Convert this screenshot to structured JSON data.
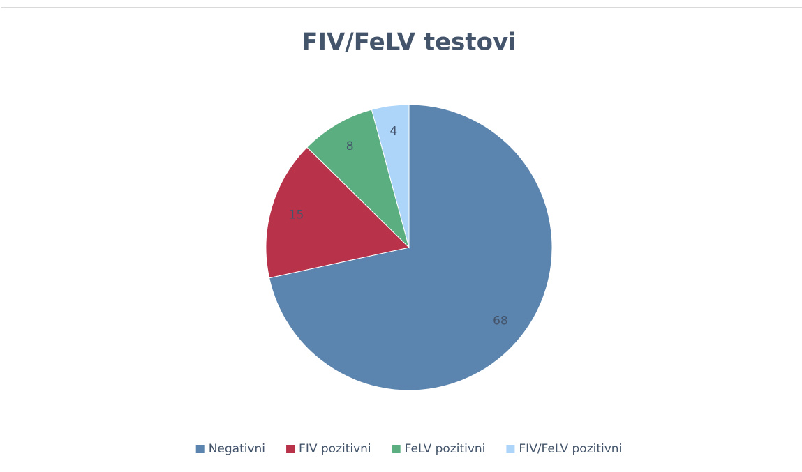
{
  "chart_data": {
    "type": "pie",
    "title": "FIV/FeLV testovi",
    "categories": [
      "Negativni",
      "FIV pozitivni",
      "FeLV pozitivni",
      "FIV/FeLV pozitivni"
    ],
    "values": [
      68,
      15,
      8,
      4
    ],
    "colors": [
      "#5b84ae",
      "#b8334a",
      "#5aae80",
      "#add5fa"
    ],
    "legend": "bottom"
  }
}
